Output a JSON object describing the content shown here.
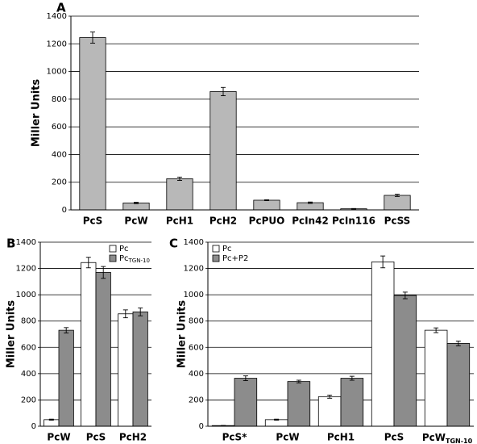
{
  "chart_data": [
    {
      "type": "bar",
      "label": "A",
      "ylabel": "Miller Units",
      "categories": [
        "PcS",
        "PcW",
        "PcH1",
        "PcH2",
        "PcPUO",
        "PcIn42",
        "PcIn116",
        "PcSS"
      ],
      "values": [
        1245,
        50,
        225,
        855,
        70,
        52,
        8,
        105
      ],
      "errors": [
        40,
        5,
        12,
        30,
        3,
        5,
        2,
        8
      ],
      "color": "#b8b8b8",
      "ylim": [
        0,
        1400
      ],
      "yticks": [
        0,
        200,
        400,
        600,
        800,
        1000,
        1200,
        1400
      ],
      "grid": true
    },
    {
      "type": "grouped_bar",
      "label": "B",
      "ylabel": "Miller Units",
      "categories": [
        "PcW",
        "PcS",
        "PcH2"
      ],
      "series": [
        {
          "name": "Pc",
          "color": "#ffffff",
          "values": [
            50,
            1245,
            855
          ],
          "errors": [
            4,
            40,
            30
          ]
        },
        {
          "name": "Pc",
          "subscript": "TGN-10",
          "color": "#8c8c8c",
          "values": [
            730,
            1170,
            870
          ],
          "errors": [
            20,
            45,
            30
          ]
        }
      ],
      "ylim": [
        0,
        1400
      ],
      "yticks": [
        0,
        200,
        400,
        600,
        800,
        1000,
        1200,
        1400
      ],
      "grid": true,
      "legend": "upper right"
    },
    {
      "type": "grouped_bar",
      "label": "C",
      "ylabel": "Miller Units",
      "categories": [
        "PcS*",
        "PcW",
        "PcH1",
        "PcS",
        {
          "label": "PcW",
          "subscript": "TGN-10"
        }
      ],
      "series": [
        {
          "name": "Pc",
          "color": "#ffffff",
          "values": [
            5,
            50,
            225,
            1250,
            730
          ],
          "errors": [
            1,
            4,
            12,
            45,
            18
          ]
        },
        {
          "name": "Pc+P2",
          "color": "#8c8c8c",
          "values": [
            365,
            340,
            365,
            995,
            630
          ],
          "errors": [
            18,
            10,
            15,
            25,
            18
          ]
        }
      ],
      "ylim": [
        0,
        1400
      ],
      "yticks": [
        0,
        200,
        400,
        600,
        800,
        1000,
        1200,
        1400
      ],
      "grid": true,
      "legend": "upper left"
    }
  ]
}
